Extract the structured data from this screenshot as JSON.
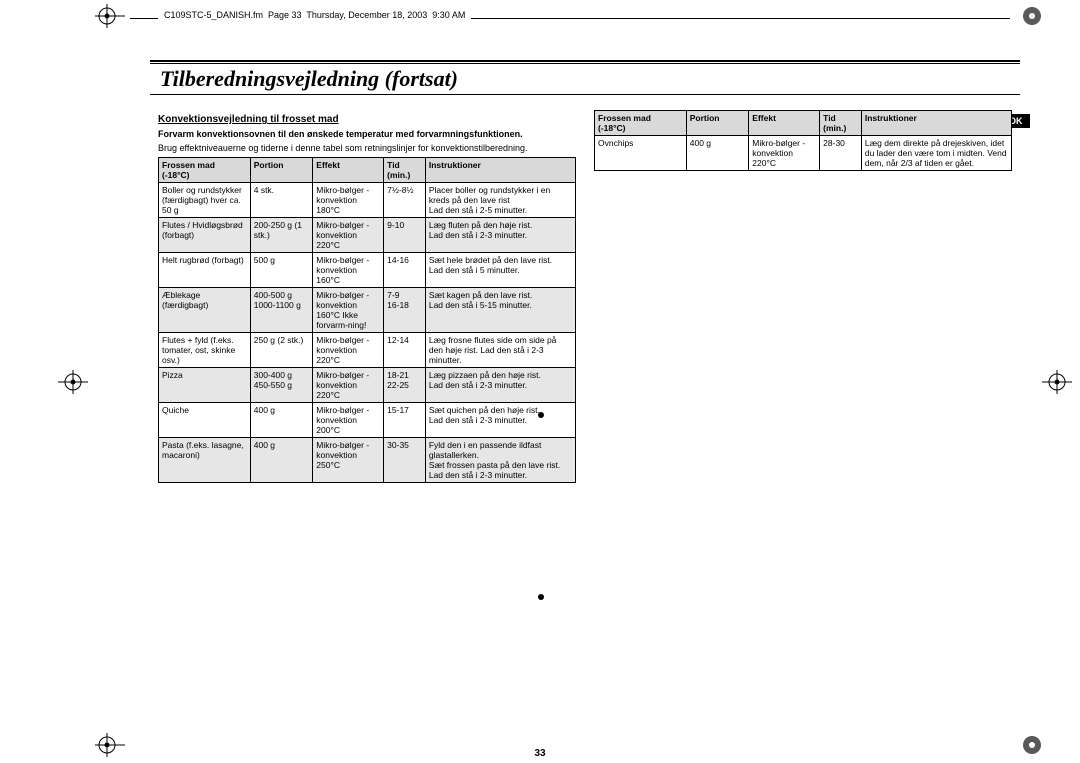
{
  "header": "C109STC-5_DANISH.fm  Page 33  Thursday, December 18, 2003  9:30 AM",
  "title": "Tilberedningsvejledning (fortsat)",
  "dk_label": "DK",
  "page_number": "33",
  "left": {
    "subtitle": "Konvektionsvejledning til frosset mad",
    "intro_bold": "Forvarm konvektionsovnen til den ønskede temperatur med forvarmningsfunktionen.",
    "intro_plain": "Brug effektniveauerne og tiderne i denne tabel som retningslinjer for konvektionstilberedning.",
    "headers": {
      "col1a": "Frossen mad",
      "col1b": "(-18°C)",
      "col2": "Portion",
      "col3": "Effekt",
      "col4a": "Tid",
      "col4b": "(min.)",
      "col5": "Instruktioner"
    },
    "rows": [
      {
        "alt": false,
        "c1": "Boller og rundstykker (færdigbagt) hver ca. 50 g",
        "c2": "4 stk.",
        "c3": "Mikro-bølger - konvektion 180°C",
        "c4": "7½-8½",
        "c5": "Placer boller og rundstykker i en kreds på den lave rist\nLad den stå i 2-5 minutter."
      },
      {
        "alt": true,
        "c1": "Flutes / Hvidløgsbrød (forbagt)",
        "c2": "200-250 g (1 stk.)",
        "c3": "Mikro-bølger - konvektion 220°C",
        "c4": "9-10",
        "c5": "Læg fluten på den høje rist.\nLad den stå i 2-3 minutter."
      },
      {
        "alt": false,
        "c1": "Helt rugbrød (forbagt)",
        "c2": "500 g",
        "c3": "Mikro-bølger - konvektion 160°C",
        "c4": "14-16",
        "c5": "Sæt hele brødet på den lave rist.\nLad den stå i 5 minutter."
      },
      {
        "alt": true,
        "c1": "Æblekage (færdigbagt)",
        "c2": "400-500 g 1000-1100 g",
        "c3": "Mikro-bølger - konvektion 160°C Ikke forvarm-ning!",
        "c4": "7-9\n16-18",
        "c5": "Sæt kagen på den lave rist.\nLad den stå i 5-15 minutter."
      },
      {
        "alt": false,
        "c1": "Flutes + fyld (f.eks. tomater, ost, skinke osv.)",
        "c2": "250 g (2 stk.)",
        "c3": "Mikro-bølger - konvektion 220°C",
        "c4": "12-14",
        "c5": "Læg frosne flutes side om side på den høje rist. Lad den stå i 2-3 minutter."
      },
      {
        "alt": true,
        "c1": "Pizza",
        "c2": "300-400 g 450-550 g",
        "c3": "Mikro-bølger - konvektion 220°C",
        "c4": "18-21\n22-25",
        "c5": "Læg pizzaen på den høje rist.\nLad den stå i 2-3 minutter."
      },
      {
        "alt": false,
        "c1": "Quiche",
        "c2": "400 g",
        "c3": "Mikro-bølger - konvektion 200°C",
        "c4": "15-17",
        "c5": "Sæt quichen på den høje rist.\nLad den stå i 2-3 minutter."
      },
      {
        "alt": true,
        "c1": "Pasta (f.eks. lasagne, macaroni)",
        "c2": "400 g",
        "c3": "Mikro-bølger - konvektion 250°C",
        "c4": "30-35",
        "c5": "Fyld den i en passende ildfast glastallerken.\nSæt frossen pasta på den lave rist.\nLad den stå i 2-3 minutter."
      }
    ]
  },
  "right": {
    "headers": {
      "col1a": "Frossen mad",
      "col1b": "(-18°C)",
      "col2": "Portion",
      "col3": "Effekt",
      "col4a": "Tid",
      "col4b": "(min.)",
      "col5": "Instruktioner"
    },
    "rows": [
      {
        "alt": false,
        "c1": "Ovnchips",
        "c2": "400 g",
        "c3": "Mikro-bølger - konvektion 220°C",
        "c4": "28-30",
        "c5": "Læg dem direkte på drejeskiven, idet du lader den være tom i midten. Vend dem, når 2/3 af tiden er gået."
      }
    ]
  },
  "col_widths": {
    "c1": "22%",
    "c2": "15%",
    "c3": "17%",
    "c4": "10%",
    "c5": "36%"
  }
}
